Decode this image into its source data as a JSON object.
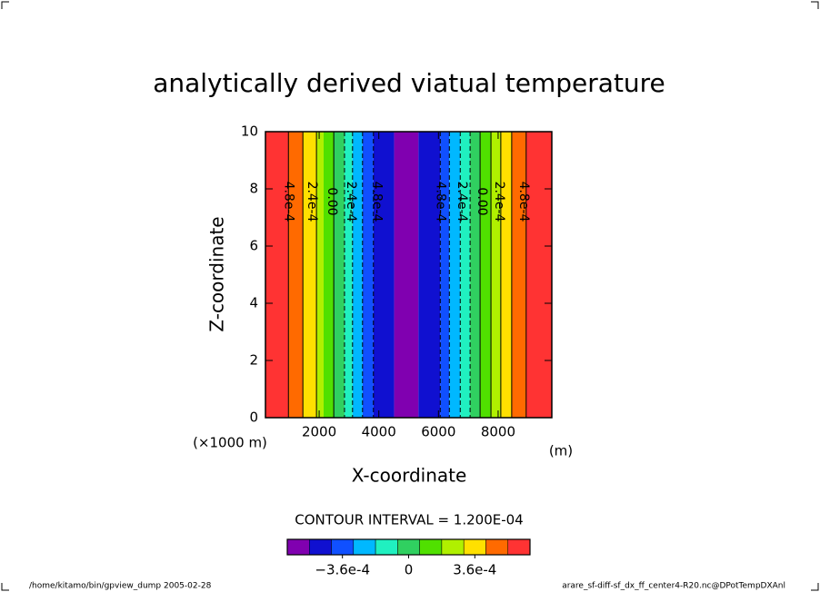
{
  "chart_data": {
    "type": "contour",
    "title": "analytically derived viatual temperature",
    "xlabel": "X-coordinate",
    "ylabel": "Z-coordinate",
    "x_scale_label": "(×1000 m)",
    "x_unit_label": "(m)",
    "xlim": [
      200,
      9800
    ],
    "ylim": [
      0,
      10
    ],
    "xticks": [
      2000,
      4000,
      6000,
      8000
    ],
    "yticks": [
      0,
      2,
      4,
      6,
      8,
      10
    ],
    "bands": [
      {
        "x0": 200,
        "x1": 970,
        "color": "#ff3333"
      },
      {
        "x0": 970,
        "x1": 1455,
        "color": "#ff6a00"
      },
      {
        "x0": 1455,
        "x1": 1910,
        "color": "#ffe000"
      },
      {
        "x0": 1910,
        "x1": 2150,
        "color": "#b0f000"
      },
      {
        "x0": 2150,
        "x1": 2490,
        "color": "#50e000"
      },
      {
        "x0": 2490,
        "x1": 2850,
        "color": "#30d060"
      },
      {
        "x0": 2850,
        "x1": 3120,
        "color": "#20f0c0"
      },
      {
        "x0": 3120,
        "x1": 3455,
        "color": "#00b8ff"
      },
      {
        "x0": 3455,
        "x1": 3820,
        "color": "#1050ff"
      },
      {
        "x0": 3820,
        "x1": 4515,
        "color": "#1010d0"
      },
      {
        "x0": 4515,
        "x1": 5330,
        "color": "#8000b0"
      },
      {
        "x0": 5330,
        "x1": 6060,
        "color": "#1010d0"
      },
      {
        "x0": 6060,
        "x1": 6365,
        "color": "#1050ff"
      },
      {
        "x0": 6365,
        "x1": 6730,
        "color": "#00b8ff"
      },
      {
        "x0": 6730,
        "x1": 7060,
        "color": "#20f0c0"
      },
      {
        "x0": 7060,
        "x1": 7395,
        "color": "#30d060"
      },
      {
        "x0": 7395,
        "x1": 7760,
        "color": "#50e000"
      },
      {
        "x0": 7760,
        "x1": 8090,
        "color": "#b0f000"
      },
      {
        "x0": 8090,
        "x1": 8455,
        "color": "#ffe000"
      },
      {
        "x0": 8455,
        "x1": 8940,
        "color": "#ff6a00"
      },
      {
        "x0": 8940,
        "x1": 9800,
        "color": "#ff3333"
      }
    ],
    "contours": [
      {
        "x": 970,
        "style": "solid"
      },
      {
        "x": 1455,
        "style": "solid"
      },
      {
        "x": 1910,
        "style": "solid"
      },
      {
        "x": 2490,
        "style": "solid"
      },
      {
        "x": 2850,
        "style": "dashed"
      },
      {
        "x": 3120,
        "style": "dashed"
      },
      {
        "x": 3455,
        "style": "dashed"
      },
      {
        "x": 3820,
        "style": "dashed"
      },
      {
        "x": 6060,
        "style": "dashed"
      },
      {
        "x": 6365,
        "style": "dashed"
      },
      {
        "x": 6730,
        "style": "dashed"
      },
      {
        "x": 7060,
        "style": "dashed"
      },
      {
        "x": 7395,
        "style": "solid"
      },
      {
        "x": 7760,
        "style": "solid"
      },
      {
        "x": 8090,
        "style": "solid"
      },
      {
        "x": 8455,
        "style": "solid"
      },
      {
        "x": 8940,
        "style": "solid"
      }
    ],
    "contour_labels": [
      {
        "x": 970,
        "text": "4.8e-4"
      },
      {
        "x": 1750,
        "text": "2.4e-4"
      },
      {
        "x": 2420,
        "text": "0.00"
      },
      {
        "x": 3070,
        "text": "2.4e-4"
      },
      {
        "x": 3940,
        "text": "4.8e-4"
      },
      {
        "x": 6060,
        "text": "4.8e-4"
      },
      {
        "x": 6790,
        "text": "2.4e-4"
      },
      {
        "x": 7460,
        "text": "0.00"
      },
      {
        "x": 8030,
        "text": "2.4e-4"
      },
      {
        "x": 8850,
        "text": "4.8e-4"
      }
    ],
    "contour_interval_text": "CONTOUR INTERVAL = 1.200E-04",
    "colorbar": {
      "lim": [
        -0.00066,
        0.00066
      ],
      "colors": [
        "#8000b0",
        "#1010d0",
        "#1050ff",
        "#00b8ff",
        "#20f0c0",
        "#30d060",
        "#50e000",
        "#b0f000",
        "#ffe000",
        "#ff6a00",
        "#ff3333"
      ],
      "ticks": [
        {
          "value": -0.00036,
          "label": "−3.6e-4"
        },
        0,
        {
          "value": 0.00036,
          "label": "3.6e-4"
        }
      ]
    },
    "footer_left": "/home/kitamo/bin/gpview_dump  2005-02-28",
    "footer_right": "arare_sf-diff-sf_dx_ff_center4-R20.nc@DPotTempDXAnl"
  }
}
